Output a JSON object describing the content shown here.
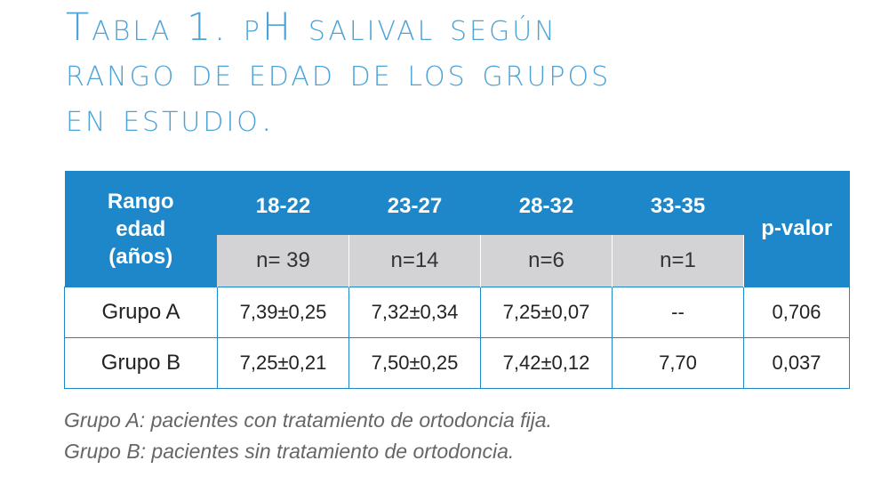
{
  "title": {
    "line1": "Tabla 1. pH salival según",
    "line2": "rango de edad de los grupos",
    "line3": "en estudio."
  },
  "table": {
    "corner_header": [
      "Rango",
      "edad",
      "(años)"
    ],
    "age_ranges": [
      "18-22",
      "23-27",
      "28-32",
      "33-35"
    ],
    "sample_sizes": [
      "n= 39",
      "n=14",
      "n=6",
      "n=1"
    ],
    "pvalue_header": "p-valor",
    "rows": [
      {
        "group": "Grupo A",
        "values": [
          "7,39±0,25",
          "7,32±0,34",
          "7,25±0,07",
          "--"
        ],
        "pvalue": "0,706"
      },
      {
        "group": "Grupo B",
        "values": [
          "7,25±0,21",
          "7,50±0,25",
          "7,42±0,12",
          "7,70"
        ],
        "pvalue": "0,037"
      }
    ]
  },
  "footnotes": [
    "Grupo A: pacientes con tratamiento de ortodoncia fija.",
    "Grupo B: pacientes sin tratamiento de ortodoncia."
  ],
  "colors": {
    "title": "#4ba3d8",
    "header_bg": "#1e87c9",
    "subheader_bg": "#d3d3d5",
    "footnote_text": "#666666"
  }
}
